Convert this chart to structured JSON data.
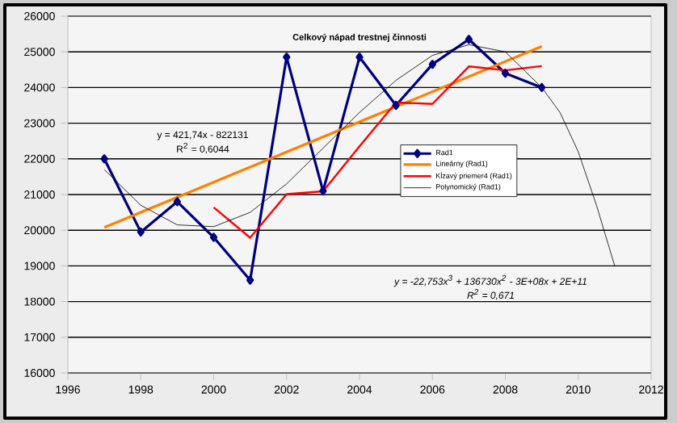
{
  "chart_data": {
    "type": "line",
    "title": "Celkový nápad trestnej činnosti",
    "xlim": [
      1996,
      2012
    ],
    "xticks": [
      1996,
      1998,
      2000,
      2002,
      2004,
      2006,
      2008,
      2010,
      2012
    ],
    "ylim": [
      16000,
      26000
    ],
    "yticks": [
      16000,
      17000,
      18000,
      19000,
      20000,
      21000,
      22000,
      23000,
      24000,
      25000,
      26000
    ],
    "grid": "y",
    "legend": "right",
    "series": [
      {
        "name": "Rad1",
        "color": "#000080",
        "marker": "diamond",
        "x": [
          1997,
          1998,
          1999,
          2000,
          2001,
          2002,
          2003,
          2004,
          2005,
          2006,
          2007,
          2008,
          2009
        ],
        "values": [
          22000,
          19950,
          20800,
          19800,
          18600,
          24850,
          21100,
          24850,
          23500,
          24650,
          25350,
          24400,
          24000
        ]
      },
      {
        "name": "Lineárny (Rad1)",
        "color": "#ff8000",
        "marker": "none",
        "x": [
          1997,
          2009
        ],
        "values": [
          20080,
          25150
        ]
      },
      {
        "name": "Kĺzavý priemer4 (Rad1)",
        "color": "#ff0000",
        "marker": "none",
        "x": [
          2000,
          2001,
          2002,
          2003,
          2004,
          2005,
          2006,
          2007,
          2008,
          2009
        ],
        "values": [
          20640,
          19790,
          21010,
          21090,
          22350,
          23580,
          23540,
          24590,
          24480,
          24600
        ]
      },
      {
        "name": "Polynomický (Rad1)",
        "color": "#000000",
        "marker": "none",
        "x": [
          1997,
          1998,
          1999,
          2000,
          2001,
          2002,
          2003,
          2004,
          2005,
          2006,
          2007,
          2008,
          2009,
          2009.5,
          2010,
          2010.5,
          2011
        ],
        "values": [
          21700,
          20700,
          20150,
          20100,
          20500,
          21300,
          22300,
          23300,
          24200,
          24900,
          25200,
          25000,
          24000,
          23300,
          22200,
          20700,
          19000
        ]
      }
    ],
    "annotations": [
      "y = 421,74x - 822131",
      "R$^{2}$ = 0,6044",
      "y = -22,753x$^{3}$ + 136730x$^{2}$ - 3E+08x + 2E+11",
      "R$^{2}$ = 0,671"
    ]
  }
}
